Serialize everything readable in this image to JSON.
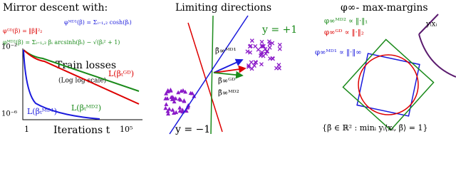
{
  "left_panel": {
    "title": "Mirror descent with:",
    "potentials": [
      "φᴳᴰ(β) = ‖β‖²₂",
      "φᴹᴰ¹(β) = Σᵢ₌₁,₂ cosh(βᵢ)",
      "φᴹᴰ²(β) = Σᵢ₌₁,₂ βᵢ arcsinh(βᵢ) − √(βᵢ² + 1)"
    ],
    "plot_title": "Train losses",
    "plot_subtitle": "(Log log scale)",
    "y_ticks": [
      "10⁻²",
      "10⁻⁶"
    ],
    "x_ticks": [
      "1",
      "10⁵"
    ],
    "x_label": "Iterations t",
    "curve_labels": [
      "L(βₜᴳᴰ)",
      "L(βₜᴹᴰ¹)",
      "L(βₜᴹᴰ²)"
    ]
  },
  "middle_panel": {
    "title": "Limiting directions",
    "class_labels": [
      "y = +1",
      "y = −1"
    ],
    "direction_labels": [
      "β̄∞ᴹᴰ¹",
      "β̄∞ᴳᴰ",
      "β̄∞ᴹᴰ²"
    ]
  },
  "right_panel": {
    "title": "φ∞- max-margins",
    "norm_labels": [
      "φ∞ᴹᴰ² ∝ ‖·‖₁",
      "φ∞ᴳᴰ ∝ ‖·‖₂",
      "φ∞ᴹᴰ¹ ∝ ‖·‖∞"
    ],
    "margin_label": "yᵢxᵢ",
    "constraint": "{β̄ ∈ ℝ² : minᵢ yᵢ⟨xᵢ, β̄⟩ = 1}"
  }
}
